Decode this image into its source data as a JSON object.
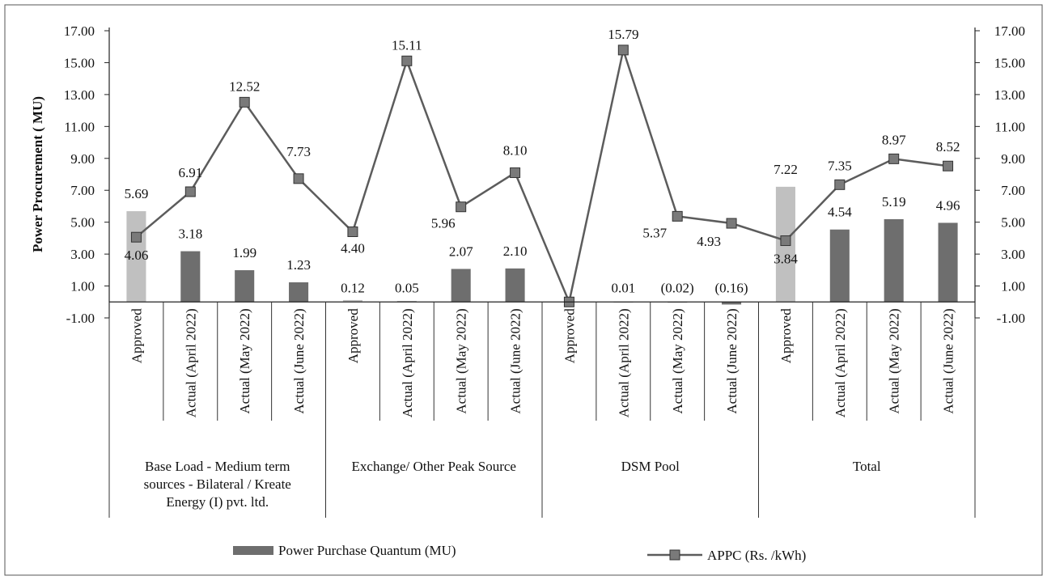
{
  "chart_data": {
    "type": "bar",
    "title": "",
    "ylabel": "Power Procurement ( MU)",
    "ylim": [
      -1,
      17
    ],
    "y2lim": [
      -1,
      17
    ],
    "yticks": [
      "17.00",
      "15.00",
      "13.00",
      "11.00",
      "9.00",
      "7.00",
      "5.00",
      "3.00",
      "1.00",
      "-1.00"
    ],
    "y2ticks": [
      "17.00",
      "15.00",
      "13.00",
      "11.00",
      "9.00",
      "7.00",
      "5.00",
      "3.00",
      "1.00",
      "-1.00"
    ],
    "groups": [
      {
        "label_lines": [
          "Base Load - Medium term",
          "sources - Bilateral / Kreate",
          "Energy (I) pvt. ltd."
        ],
        "size": 4
      },
      {
        "label_lines": [
          "Exchange/ Other Peak Source"
        ],
        "size": 4
      },
      {
        "label_lines": [
          "DSM Pool"
        ],
        "size": 4
      },
      {
        "label_lines": [
          "Total"
        ],
        "size": 4
      }
    ],
    "categories": [
      "Approved",
      "Actual (April 2022)",
      "Actual (May 2022)",
      "Actual (June 2022)",
      "Approved",
      "Actual (April 2022)",
      "Actual (May 2022)",
      "Actual (June 2022)",
      "Approved",
      "Actual (April 2022)",
      "Actual (May 2022)",
      "Actual (June 2022)",
      "Approved",
      "Actual (April 2022)",
      "Actual (May 2022)",
      "Actual (June 2022)"
    ],
    "series": [
      {
        "name": "Power Purchase Quantum (MU)",
        "kind": "bar",
        "values": [
          5.69,
          3.18,
          1.99,
          1.23,
          0.12,
          0.05,
          2.07,
          2.1,
          null,
          0.01,
          -0.02,
          -0.16,
          7.22,
          4.54,
          5.19,
          4.96
        ],
        "labels": [
          "5.69",
          "3.18",
          "1.99",
          "1.23",
          "0.12",
          "0.05",
          "2.07",
          "2.10",
          "",
          "0.01",
          "(0.02)",
          "(0.16)",
          "7.22",
          "4.54",
          "5.19",
          "4.96"
        ]
      },
      {
        "name": "APPC (Rs. /kWh)",
        "kind": "line",
        "values": [
          4.06,
          6.91,
          12.52,
          7.73,
          4.4,
          15.11,
          5.96,
          8.1,
          0.0,
          15.79,
          5.37,
          4.93,
          3.84,
          7.35,
          8.97,
          8.52
        ],
        "labels": [
          "4.06",
          "6.91",
          "12.52",
          "7.73",
          "4.40",
          "15.11",
          "5.96",
          "8.10",
          "",
          "15.79",
          "5.37",
          "4.93",
          "3.84",
          "7.35",
          "8.97",
          "8.52"
        ]
      }
    ],
    "legend_position": "bottom",
    "colors": {
      "bar_approved": "#c0c0c0",
      "bar_actual": "#6e6e6e",
      "line": "#5c5c5c",
      "marker": "#7a7a7a"
    }
  }
}
